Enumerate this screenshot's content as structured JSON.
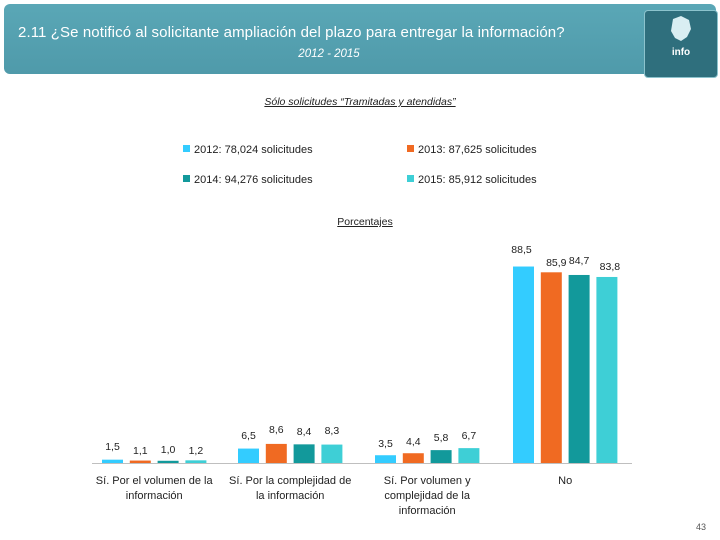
{
  "header": {
    "title": "2.11 ¿Se notificó al solicitante ampliación del plazo para entregar la información?",
    "years": "2012 - 2015",
    "logo_text": "info"
  },
  "page_number": "43",
  "chart_data": {
    "type": "bar",
    "title": "Sólo solicitudes “Tramitadas y atendidas”",
    "subtitle": "Porcentajes",
    "categories": [
      [
        "Sí. Por el volumen de la",
        "información"
      ],
      [
        "Sí. Por la complejidad de",
        "la información"
      ],
      [
        "Sí. Por volumen y",
        "complejidad de la",
        "información"
      ],
      [
        "No"
      ]
    ],
    "series": [
      {
        "name": "2012: 78,024 solicitudes",
        "color": "#33CCFF",
        "values": [
          1.5,
          6.5,
          3.5,
          88.5
        ],
        "labels": [
          "1,5",
          "6,5",
          "3,5",
          "88,5"
        ]
      },
      {
        "name": "2013: 87,625 solicitudes",
        "color": "#F06A22",
        "values": [
          1.1,
          8.6,
          4.4,
          85.9
        ],
        "labels": [
          "1,1",
          "8,6",
          "4,4",
          "85,9"
        ]
      },
      {
        "name": "2014: 94,276 solicitudes",
        "color": "#12999B",
        "values": [
          1.0,
          8.4,
          5.8,
          84.7
        ],
        "labels": [
          "1,0",
          "8,4",
          "5,8",
          "84,7"
        ]
      },
      {
        "name": "2015: 85,912 solicitudes",
        "color": "#3ECFD6",
        "values": [
          1.2,
          8.3,
          6.7,
          83.8
        ],
        "labels": [
          "1,2",
          "8,3",
          "6,7",
          "83,8"
        ]
      }
    ],
    "ylim": [
      0,
      100
    ],
    "grid": false,
    "legend": "top"
  }
}
